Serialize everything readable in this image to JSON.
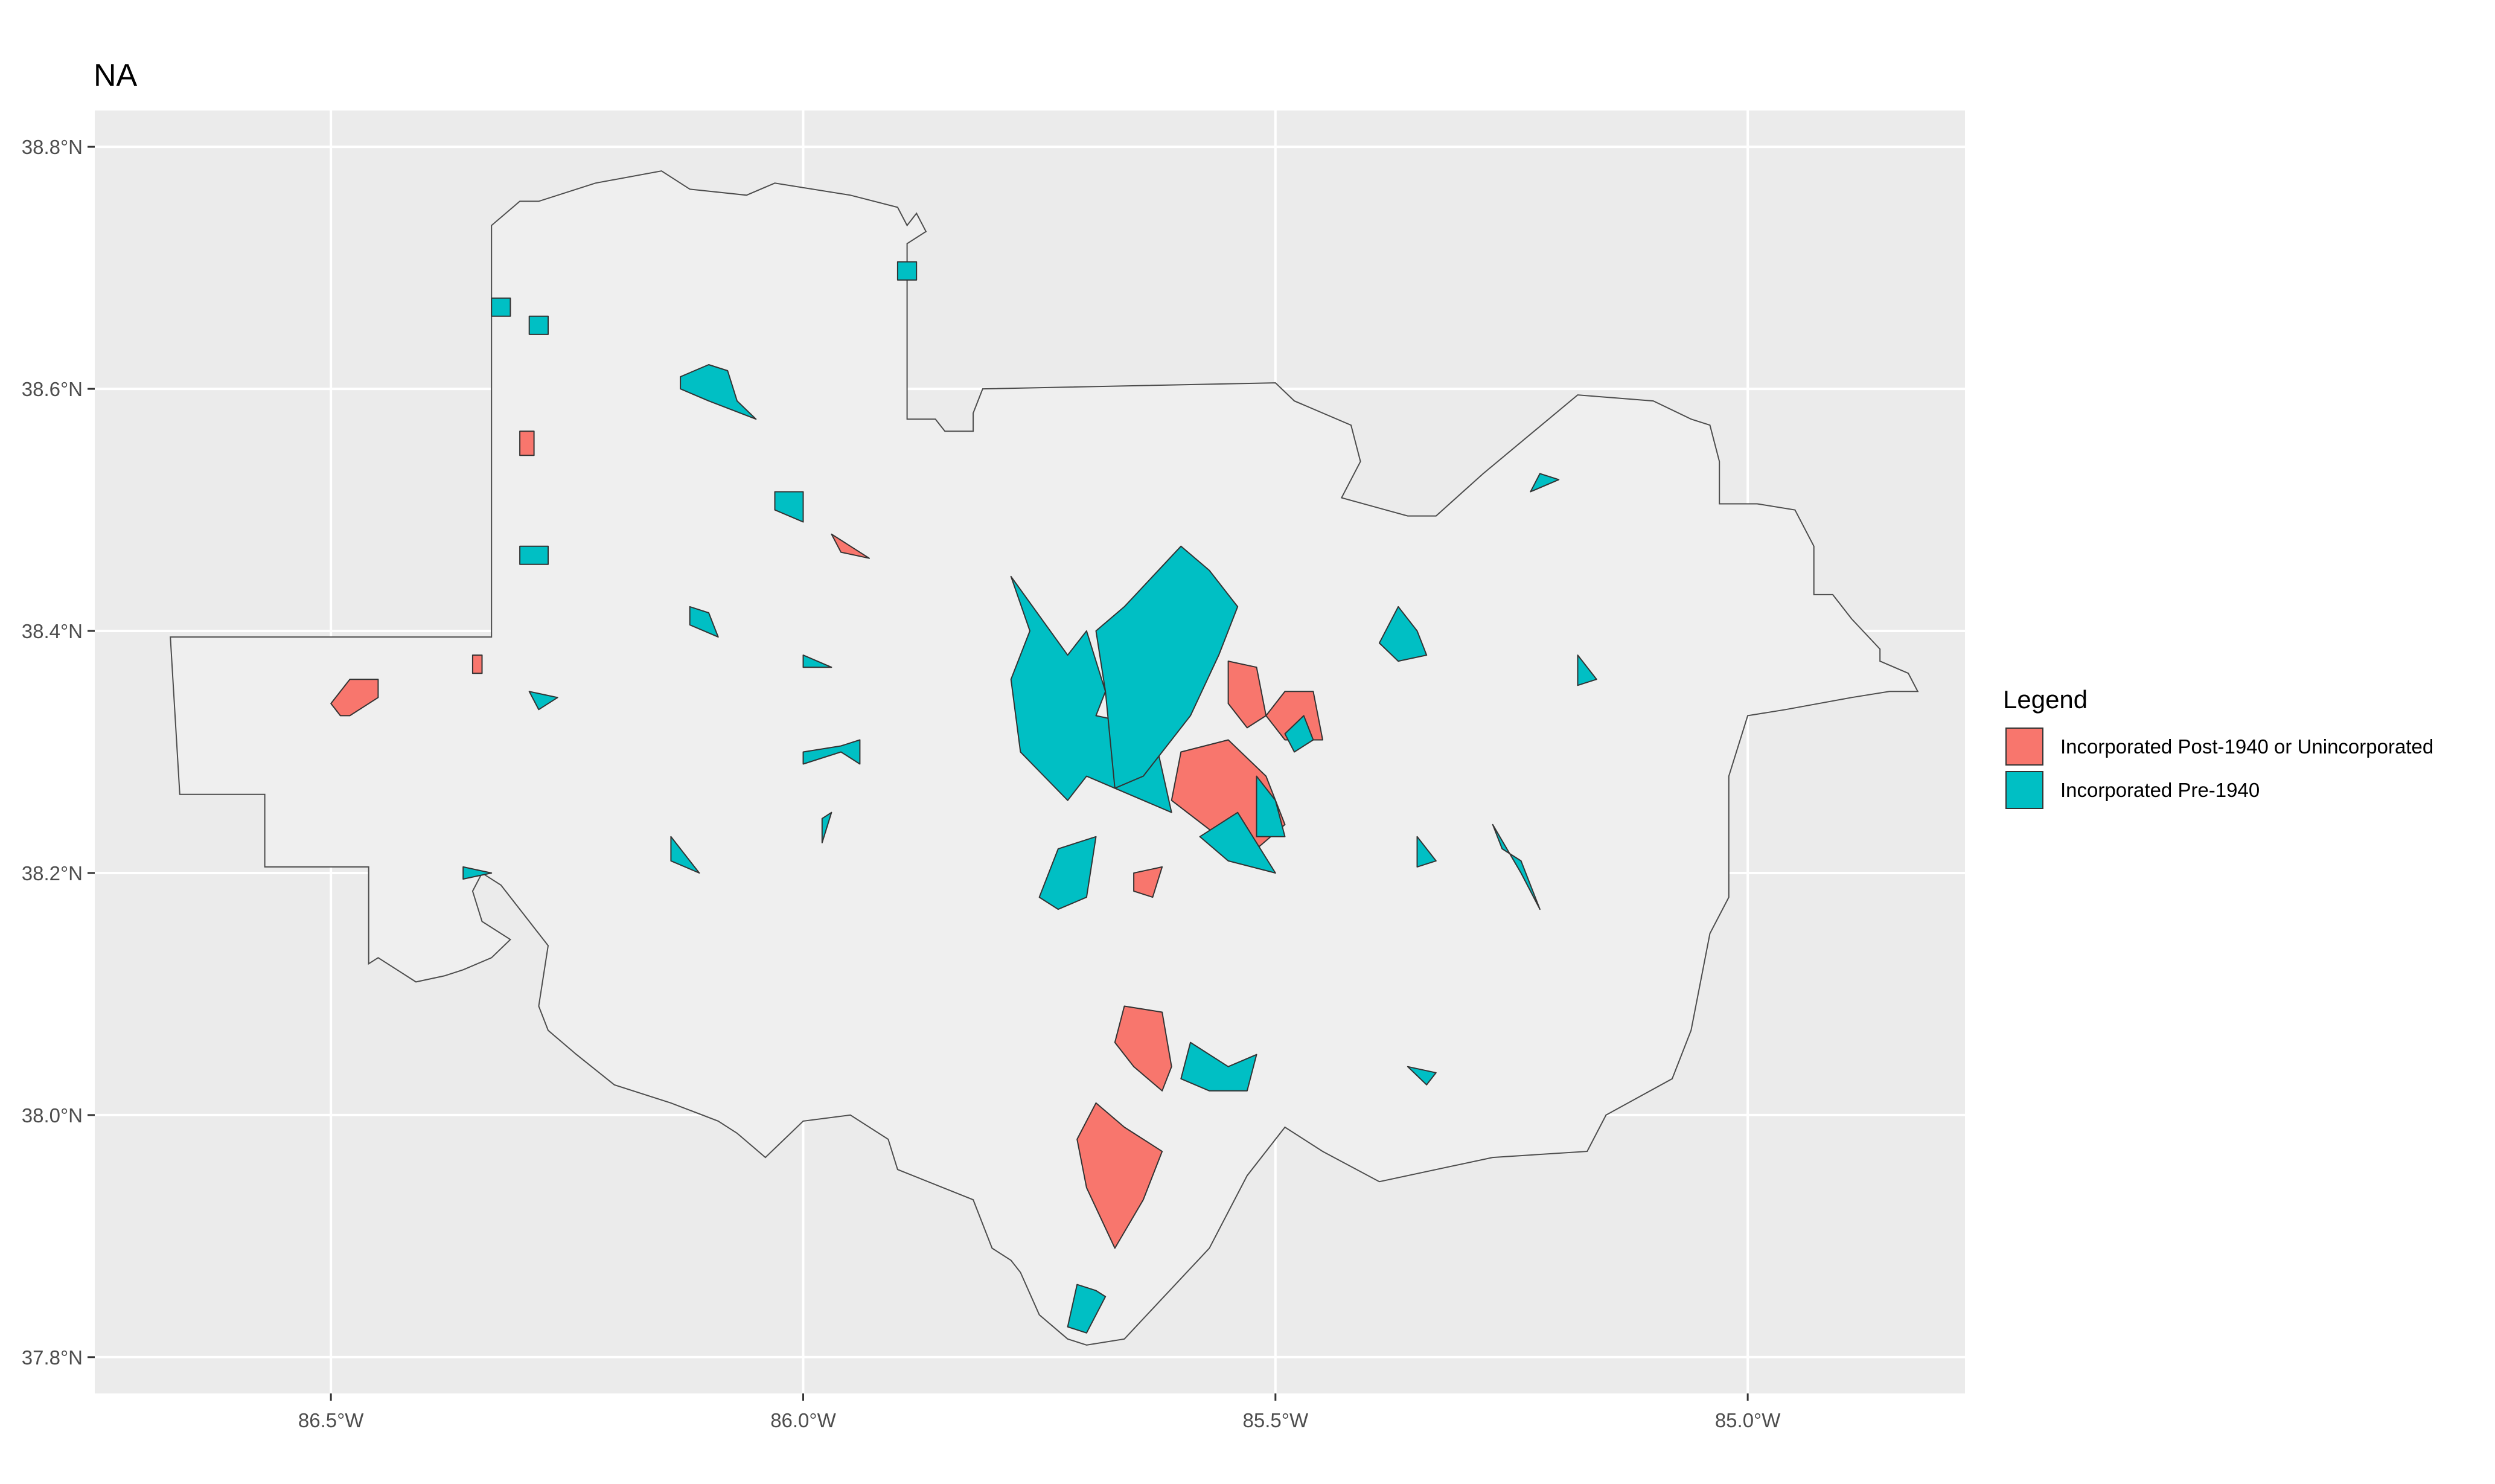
{
  "title": "NA",
  "colors": {
    "panel": "#EBEBEB",
    "grid": "#FFFFFF",
    "county_fill": "#EFEFEF",
    "county_stroke": "#4D4D4D",
    "post1940": "#F8766D",
    "pre1940": "#00BFC4"
  },
  "axes": {
    "x_ticks": [
      {
        "value": -86.5,
        "label": "86.5°W"
      },
      {
        "value": -86.0,
        "label": "86.0°W"
      },
      {
        "value": -85.5,
        "label": "85.5°W"
      },
      {
        "value": -85.0,
        "label": "85.0°W"
      }
    ],
    "y_ticks": [
      {
        "value": 38.8,
        "label": "38.8°N"
      },
      {
        "value": 38.6,
        "label": "38.6°N"
      },
      {
        "value": 38.4,
        "label": "38.4°N"
      },
      {
        "value": 38.2,
        "label": "38.2°N"
      },
      {
        "value": 38.0,
        "label": "38.0°N"
      },
      {
        "value": 37.8,
        "label": "37.8°N"
      }
    ]
  },
  "legend": {
    "title": "Legend",
    "items": [
      {
        "key": "post1940",
        "label": "Incorporated Post-1940 or Unincorporated"
      },
      {
        "key": "pre1940",
        "label": "Incorporated Pre-1940"
      }
    ]
  },
  "chart_data": {
    "type": "map",
    "xlim": [
      -86.75,
      -84.77
    ],
    "ylim": [
      37.77,
      38.83
    ],
    "boundary": [
      [
        -86.67,
        38.395
      ],
      [
        -86.33,
        38.395
      ],
      [
        -86.33,
        38.735
      ],
      [
        -86.3,
        38.755
      ],
      [
        -86.28,
        38.755
      ],
      [
        -86.22,
        38.77
      ],
      [
        -86.15,
        38.78
      ],
      [
        -86.12,
        38.765
      ],
      [
        -86.06,
        38.76
      ],
      [
        -86.03,
        38.77
      ],
      [
        -85.95,
        38.76
      ],
      [
        -85.9,
        38.75
      ],
      [
        -85.89,
        38.735
      ],
      [
        -85.88,
        38.745
      ],
      [
        -85.87,
        38.73
      ],
      [
        -85.89,
        38.72
      ],
      [
        -85.89,
        38.575
      ],
      [
        -85.86,
        38.575
      ],
      [
        -85.85,
        38.565
      ],
      [
        -85.82,
        38.565
      ],
      [
        -85.82,
        38.58
      ],
      [
        -85.81,
        38.6
      ],
      [
        -85.5,
        38.605
      ],
      [
        -85.48,
        38.59
      ],
      [
        -85.42,
        38.57
      ],
      [
        -85.41,
        38.54
      ],
      [
        -85.43,
        38.51
      ],
      [
        -85.36,
        38.495
      ],
      [
        -85.33,
        38.495
      ],
      [
        -85.28,
        38.53
      ],
      [
        -85.18,
        38.595
      ],
      [
        -85.1,
        38.59
      ],
      [
        -85.06,
        38.575
      ],
      [
        -85.04,
        38.57
      ],
      [
        -85.03,
        38.54
      ],
      [
        -85.03,
        38.505
      ],
      [
        -84.99,
        38.505
      ],
      [
        -84.95,
        38.5
      ],
      [
        -84.93,
        38.47
      ],
      [
        -84.93,
        38.43
      ],
      [
        -84.91,
        38.43
      ],
      [
        -84.89,
        38.41
      ],
      [
        -84.86,
        38.385
      ],
      [
        -84.86,
        38.375
      ],
      [
        -84.83,
        38.365
      ],
      [
        -84.82,
        38.35
      ],
      [
        -84.85,
        38.35
      ],
      [
        -84.89,
        38.345
      ],
      [
        -84.96,
        38.335
      ],
      [
        -85.0,
        38.33
      ],
      [
        -85.02,
        38.28
      ],
      [
        -85.02,
        38.18
      ],
      [
        -85.04,
        38.15
      ],
      [
        -85.06,
        38.07
      ],
      [
        -85.08,
        38.03
      ],
      [
        -85.15,
        38.0
      ],
      [
        -85.17,
        37.97
      ],
      [
        -85.27,
        37.965
      ],
      [
        -85.39,
        37.945
      ],
      [
        -85.45,
        37.97
      ],
      [
        -85.49,
        37.99
      ],
      [
        -85.53,
        37.95
      ],
      [
        -85.57,
        37.89
      ],
      [
        -85.63,
        37.84
      ],
      [
        -85.66,
        37.815
      ],
      [
        -85.7,
        37.81
      ],
      [
        -85.72,
        37.815
      ],
      [
        -85.75,
        37.835
      ],
      [
        -85.77,
        37.87
      ],
      [
        -85.78,
        37.88
      ],
      [
        -85.8,
        37.89
      ],
      [
        -85.82,
        37.93
      ],
      [
        -85.9,
        37.955
      ],
      [
        -85.91,
        37.98
      ],
      [
        -85.95,
        38.0
      ],
      [
        -86.0,
        37.995
      ],
      [
        -86.04,
        37.965
      ],
      [
        -86.07,
        37.985
      ],
      [
        -86.09,
        37.995
      ],
      [
        -86.14,
        38.01
      ],
      [
        -86.2,
        38.025
      ],
      [
        -86.24,
        38.05
      ],
      [
        -86.27,
        38.07
      ],
      [
        -86.28,
        38.09
      ],
      [
        -86.27,
        38.14
      ],
      [
        -86.3,
        38.17
      ],
      [
        -86.32,
        38.19
      ],
      [
        -86.34,
        38.2
      ],
      [
        -86.35,
        38.185
      ],
      [
        -86.34,
        38.16
      ],
      [
        -86.31,
        38.145
      ],
      [
        -86.33,
        38.13
      ],
      [
        -86.36,
        38.12
      ],
      [
        -86.38,
        38.115
      ],
      [
        -86.41,
        38.11
      ],
      [
        -86.43,
        38.12
      ],
      [
        -86.45,
        38.13
      ],
      [
        -86.46,
        38.125
      ],
      [
        -86.46,
        38.205
      ],
      [
        -86.57,
        38.205
      ],
      [
        -86.57,
        38.265
      ],
      [
        -86.66,
        38.265
      ],
      [
        -86.67,
        38.395
      ]
    ],
    "regions": [
      {
        "cat": "pre1940",
        "pts": [
          [
            -86.33,
            38.675
          ],
          [
            -86.31,
            38.675
          ],
          [
            -86.31,
            38.66
          ],
          [
            -86.33,
            38.66
          ]
        ]
      },
      {
        "cat": "pre1940",
        "pts": [
          [
            -86.29,
            38.66
          ],
          [
            -86.27,
            38.66
          ],
          [
            -86.27,
            38.645
          ],
          [
            -86.29,
            38.645
          ]
        ]
      },
      {
        "cat": "pre1940",
        "pts": [
          [
            -85.9,
            38.705
          ],
          [
            -85.88,
            38.705
          ],
          [
            -85.88,
            38.69
          ],
          [
            -85.9,
            38.69
          ]
        ]
      },
      {
        "cat": "post1940",
        "pts": [
          [
            -86.3,
            38.565
          ],
          [
            -86.285,
            38.565
          ],
          [
            -86.285,
            38.545
          ],
          [
            -86.3,
            38.545
          ]
        ]
      },
      {
        "cat": "pre1940",
        "pts": [
          [
            -86.3,
            38.47
          ],
          [
            -86.27,
            38.47
          ],
          [
            -86.27,
            38.455
          ],
          [
            -86.3,
            38.455
          ]
        ]
      },
      {
        "cat": "pre1940",
        "pts": [
          [
            -86.13,
            38.61
          ],
          [
            -86.1,
            38.62
          ],
          [
            -86.08,
            38.615
          ],
          [
            -86.07,
            38.59
          ],
          [
            -86.05,
            38.575
          ],
          [
            -86.1,
            38.59
          ],
          [
            -86.13,
            38.6
          ]
        ]
      },
      {
        "cat": "pre1940",
        "pts": [
          [
            -86.03,
            38.515
          ],
          [
            -86.0,
            38.515
          ],
          [
            -86.0,
            38.49
          ],
          [
            -86.03,
            38.5
          ]
        ]
      },
      {
        "cat": "post1940",
        "pts": [
          [
            -85.97,
            38.48
          ],
          [
            -85.95,
            38.47
          ],
          [
            -85.93,
            38.46
          ],
          [
            -85.96,
            38.465
          ]
        ]
      },
      {
        "cat": "pre1940",
        "pts": [
          [
            -86.12,
            38.42
          ],
          [
            -86.1,
            38.415
          ],
          [
            -86.09,
            38.395
          ],
          [
            -86.12,
            38.405
          ]
        ]
      },
      {
        "cat": "post1940",
        "pts": [
          [
            -86.5,
            38.34
          ],
          [
            -86.48,
            38.36
          ],
          [
            -86.45,
            38.36
          ],
          [
            -86.45,
            38.345
          ],
          [
            -86.48,
            38.33
          ],
          [
            -86.49,
            38.33
          ]
        ]
      },
      {
        "cat": "post1940",
        "pts": [
          [
            -86.35,
            38.38
          ],
          [
            -86.34,
            38.38
          ],
          [
            -86.34,
            38.365
          ],
          [
            -86.35,
            38.365
          ]
        ]
      },
      {
        "cat": "pre1940",
        "pts": [
          [
            -86.29,
            38.35
          ],
          [
            -86.26,
            38.345
          ],
          [
            -86.28,
            38.335
          ]
        ]
      },
      {
        "cat": "pre1940",
        "pts": [
          [
            -86.0,
            38.38
          ],
          [
            -85.97,
            38.37
          ],
          [
            -86.0,
            38.37
          ]
        ]
      },
      {
        "cat": "pre1940",
        "pts": [
          [
            -86.0,
            38.3
          ],
          [
            -85.96,
            38.305
          ],
          [
            -85.94,
            38.31
          ],
          [
            -85.94,
            38.29
          ],
          [
            -85.96,
            38.3
          ],
          [
            -86.0,
            38.29
          ]
        ]
      },
      {
        "cat": "pre1940",
        "pts": [
          [
            -85.98,
            38.245
          ],
          [
            -85.97,
            38.25
          ],
          [
            -85.98,
            38.225
          ]
        ]
      },
      {
        "cat": "pre1940",
        "pts": [
          [
            -86.14,
            38.23
          ],
          [
            -86.12,
            38.21
          ],
          [
            -86.11,
            38.2
          ],
          [
            -86.14,
            38.21
          ]
        ]
      },
      {
        "cat": "pre1940",
        "pts": [
          [
            -86.36,
            38.205
          ],
          [
            -86.33,
            38.2
          ],
          [
            -86.36,
            38.195
          ]
        ]
      },
      {
        "cat": "pre1940",
        "pts": [
          [
            -85.78,
            38.445
          ],
          [
            -85.72,
            38.38
          ],
          [
            -85.7,
            38.4
          ],
          [
            -85.68,
            38.35
          ],
          [
            -85.69,
            38.33
          ],
          [
            -85.63,
            38.32
          ],
          [
            -85.61,
            38.25
          ],
          [
            -85.7,
            38.28
          ],
          [
            -85.72,
            38.26
          ],
          [
            -85.77,
            38.3
          ],
          [
            -85.78,
            38.36
          ],
          [
            -85.76,
            38.4
          ]
        ]
      },
      {
        "cat": "pre1940",
        "pts": [
          [
            -85.66,
            38.42
          ],
          [
            -85.6,
            38.47
          ],
          [
            -85.57,
            38.45
          ],
          [
            -85.54,
            38.42
          ],
          [
            -85.56,
            38.38
          ],
          [
            -85.59,
            38.33
          ],
          [
            -85.64,
            38.28
          ],
          [
            -85.67,
            38.27
          ],
          [
            -85.68,
            38.35
          ],
          [
            -85.69,
            38.4
          ]
        ]
      },
      {
        "cat": "pre1940",
        "pts": [
          [
            -85.73,
            38.22
          ],
          [
            -85.69,
            38.23
          ],
          [
            -85.7,
            38.18
          ],
          [
            -85.73,
            38.17
          ],
          [
            -85.75,
            38.18
          ]
        ]
      },
      {
        "cat": "post1940",
        "pts": [
          [
            -85.6,
            38.3
          ],
          [
            -85.55,
            38.31
          ],
          [
            -85.51,
            38.28
          ],
          [
            -85.49,
            38.24
          ],
          [
            -85.52,
            38.22
          ],
          [
            -85.56,
            38.23
          ],
          [
            -85.61,
            38.26
          ]
        ]
      },
      {
        "cat": "post1940",
        "pts": [
          [
            -85.55,
            38.375
          ],
          [
            -85.52,
            38.37
          ],
          [
            -85.51,
            38.33
          ],
          [
            -85.53,
            38.32
          ],
          [
            -85.55,
            38.34
          ]
        ]
      },
      {
        "cat": "post1940",
        "pts": [
          [
            -85.49,
            38.35
          ],
          [
            -85.46,
            38.35
          ],
          [
            -85.45,
            38.31
          ],
          [
            -85.49,
            38.31
          ],
          [
            -85.51,
            38.33
          ]
        ]
      },
      {
        "cat": "pre1940",
        "pts": [
          [
            -85.46,
            38.31
          ],
          [
            -85.47,
            38.33
          ],
          [
            -85.49,
            38.315
          ],
          [
            -85.48,
            38.3
          ]
        ]
      },
      {
        "cat": "pre1940",
        "pts": [
          [
            -85.58,
            38.23
          ],
          [
            -85.55,
            38.21
          ],
          [
            -85.5,
            38.2
          ],
          [
            -85.54,
            38.25
          ]
        ]
      },
      {
        "cat": "pre1940",
        "pts": [
          [
            -85.52,
            38.28
          ],
          [
            -85.5,
            38.26
          ],
          [
            -85.49,
            38.23
          ],
          [
            -85.52,
            38.23
          ]
        ]
      },
      {
        "cat": "post1940",
        "pts": [
          [
            -85.65,
            38.2
          ],
          [
            -85.62,
            38.205
          ],
          [
            -85.63,
            38.18
          ],
          [
            -85.65,
            38.185
          ]
        ]
      },
      {
        "cat": "post1940",
        "pts": [
          [
            -85.66,
            38.09
          ],
          [
            -85.62,
            38.085
          ],
          [
            -85.61,
            38.04
          ],
          [
            -85.62,
            38.02
          ],
          [
            -85.65,
            38.04
          ],
          [
            -85.67,
            38.06
          ]
        ]
      },
      {
        "cat": "post1940",
        "pts": [
          [
            -85.69,
            38.01
          ],
          [
            -85.66,
            37.99
          ],
          [
            -85.62,
            37.97
          ],
          [
            -85.64,
            37.93
          ],
          [
            -85.67,
            37.89
          ],
          [
            -85.7,
            37.94
          ],
          [
            -85.71,
            37.98
          ]
        ]
      },
      {
        "cat": "pre1940",
        "pts": [
          [
            -85.59,
            38.06
          ],
          [
            -85.55,
            38.04
          ],
          [
            -85.52,
            38.05
          ],
          [
            -85.53,
            38.02
          ],
          [
            -85.57,
            38.02
          ],
          [
            -85.6,
            38.03
          ]
        ]
      },
      {
        "cat": "pre1940",
        "pts": [
          [
            -85.71,
            37.86
          ],
          [
            -85.69,
            37.855
          ],
          [
            -85.68,
            37.85
          ],
          [
            -85.7,
            37.82
          ],
          [
            -85.72,
            37.825
          ]
        ]
      },
      {
        "cat": "pre1940",
        "pts": [
          [
            -85.37,
            38.42
          ],
          [
            -85.35,
            38.4
          ],
          [
            -85.34,
            38.38
          ],
          [
            -85.37,
            38.375
          ],
          [
            -85.39,
            38.39
          ]
        ]
      },
      {
        "cat": "pre1940",
        "pts": [
          [
            -85.22,
            38.53
          ],
          [
            -85.2,
            38.525
          ],
          [
            -85.23,
            38.515
          ]
        ]
      },
      {
        "cat": "pre1940",
        "pts": [
          [
            -85.18,
            38.38
          ],
          [
            -85.16,
            38.36
          ],
          [
            -85.18,
            38.355
          ]
        ]
      },
      {
        "cat": "pre1940",
        "pts": [
          [
            -85.35,
            38.23
          ],
          [
            -85.33,
            38.21
          ],
          [
            -85.35,
            38.205
          ]
        ]
      },
      {
        "cat": "pre1940",
        "pts": [
          [
            -85.27,
            38.24
          ],
          [
            -85.24,
            38.2
          ],
          [
            -85.22,
            38.17
          ],
          [
            -85.24,
            38.21
          ],
          [
            -85.26,
            38.22
          ]
        ]
      },
      {
        "cat": "pre1940",
        "pts": [
          [
            -85.36,
            38.04
          ],
          [
            -85.33,
            38.035
          ],
          [
            -85.34,
            38.025
          ]
        ]
      }
    ]
  }
}
